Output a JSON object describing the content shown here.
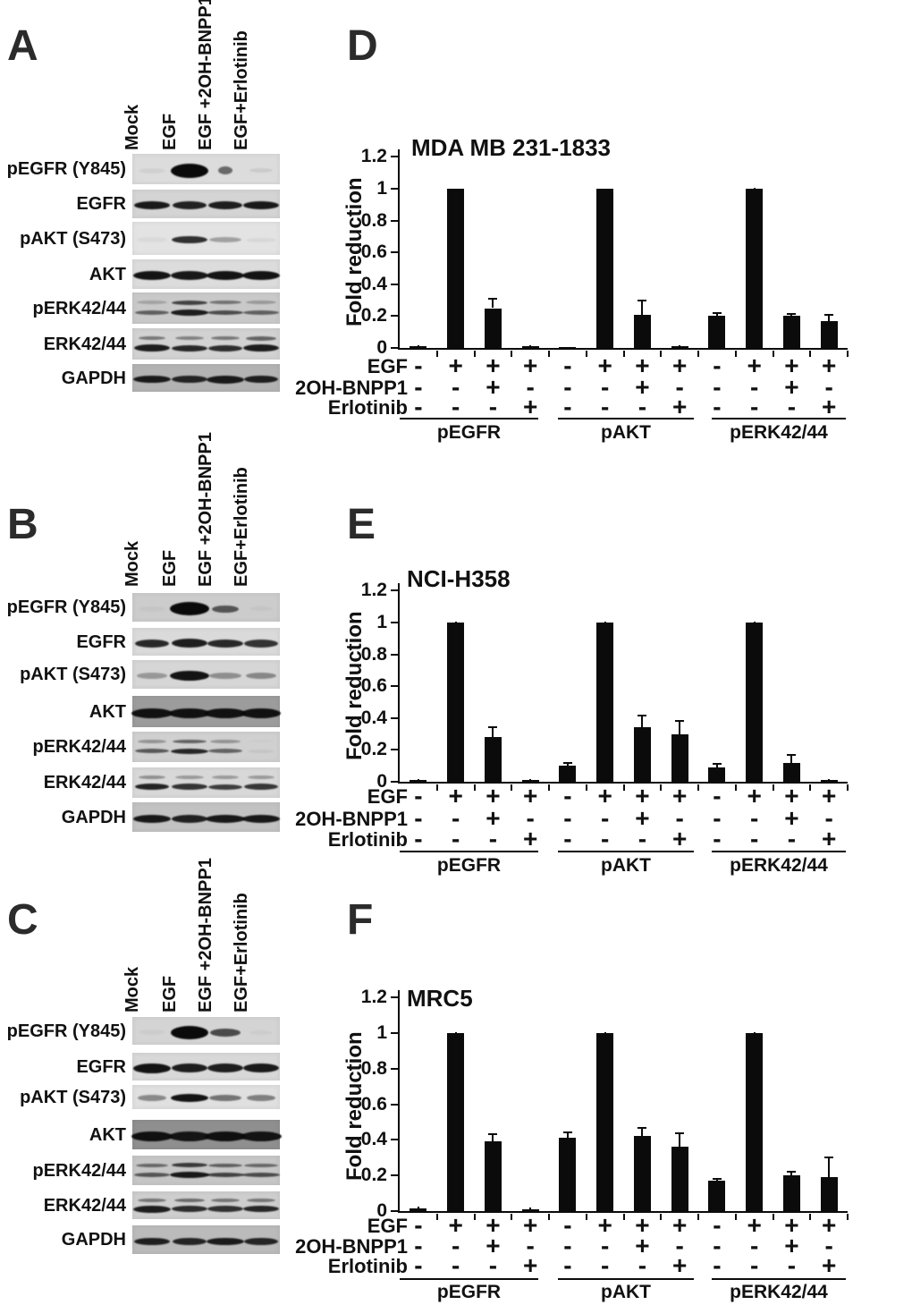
{
  "colors": {
    "ink": "#111111",
    "bar": "#0b0b0b",
    "background": "#ffffff"
  },
  "blot_lane_labels": [
    "Mock",
    "EGF",
    "EGF +2OH-BNPP1",
    "EGF+Erlotinib"
  ],
  "treatment_rows": [
    {
      "label": "EGF",
      "pattern": [
        "-",
        "+",
        "+",
        "+"
      ]
    },
    {
      "label": "2OH-BNPP1",
      "pattern": [
        "-",
        "-",
        "+",
        "-"
      ]
    },
    {
      "label": "Erlotinib",
      "pattern": [
        "-",
        "-",
        "-",
        "+"
      ]
    }
  ],
  "blot_panels": [
    {
      "letter": "A",
      "rows": [
        {
          "label": "pEGFR (Y845)",
          "bg": "#dcdcdc",
          "bands": [
            [
              0.05,
              30,
              6
            ],
            [
              1,
              42,
              16
            ],
            [
              0.55,
              16,
              9
            ],
            [
              0.08,
              26,
              5
            ]
          ]
        },
        {
          "label": "EGFR",
          "bg": "#d4d4d4",
          "bands": [
            [
              0.92,
              40,
              9
            ],
            [
              0.88,
              38,
              9
            ],
            [
              0.9,
              38,
              9
            ],
            [
              0.92,
              40,
              9
            ]
          ]
        },
        {
          "label": "pAKT (S473)",
          "bg": "#e3e3e3",
          "bands": [
            [
              0.04,
              34,
              6
            ],
            [
              0.82,
              40,
              8
            ],
            [
              0.3,
              36,
              6
            ],
            [
              0.05,
              34,
              5
            ]
          ]
        },
        {
          "label": "AKT",
          "bg": "#dcdcdc",
          "bands": [
            [
              0.95,
              42,
              10
            ],
            [
              0.93,
              42,
              10
            ],
            [
              0.95,
              42,
              10
            ],
            [
              0.95,
              42,
              10
            ]
          ]
        },
        {
          "label": "pERK42/44",
          "bg": "#c9c9c9",
          "bands": [
            [
              0.55,
              38,
              5
            ],
            [
              0.9,
              42,
              7
            ],
            [
              0.65,
              40,
              5
            ],
            [
              0.55,
              40,
              5
            ]
          ],
          "bands2": [
            [
              0.2,
              34,
              4
            ],
            [
              0.7,
              40,
              5
            ],
            [
              0.45,
              36,
              4
            ],
            [
              0.25,
              34,
              4
            ]
          ]
        },
        {
          "label": "ERK42/44",
          "bg": "#d2d2d2",
          "bands": [
            [
              0.9,
              40,
              8
            ],
            [
              0.85,
              40,
              7
            ],
            [
              0.82,
              38,
              7
            ],
            [
              0.9,
              40,
              8
            ]
          ],
          "bands2": [
            [
              0.45,
              30,
              4
            ],
            [
              0.4,
              32,
              4
            ],
            [
              0.45,
              32,
              4
            ],
            [
              0.55,
              34,
              5
            ]
          ]
        },
        {
          "label": "GAPDH",
          "bg": "#b3b3b3",
          "bands": [
            [
              0.9,
              42,
              8
            ],
            [
              0.85,
              40,
              8
            ],
            [
              0.9,
              42,
              9
            ],
            [
              0.88,
              38,
              8
            ]
          ]
        }
      ]
    },
    {
      "letter": "B",
      "rows": [
        {
          "label": "pEGFR (Y845)",
          "bg": "#cccccc",
          "bands": [
            [
              0.03,
              30,
              6
            ],
            [
              1,
              44,
              15
            ],
            [
              0.62,
              30,
              8
            ],
            [
              0.03,
              26,
              5
            ]
          ]
        },
        {
          "label": "EGFR",
          "bg": "#dadada",
          "bands": [
            [
              0.85,
              38,
              9
            ],
            [
              0.9,
              40,
              10
            ],
            [
              0.85,
              40,
              9
            ],
            [
              0.8,
              38,
              9
            ]
          ]
        },
        {
          "label": "pAKT (S473)",
          "bg": "#d6d6d6",
          "bands": [
            [
              0.3,
              34,
              7
            ],
            [
              0.95,
              44,
              11
            ],
            [
              0.35,
              36,
              7
            ],
            [
              0.38,
              34,
              7
            ]
          ]
        },
        {
          "label": "AKT",
          "bg": "#9c9c9c",
          "bands": [
            [
              0.95,
              46,
              11
            ],
            [
              0.95,
              46,
              11
            ],
            [
              0.95,
              46,
              11
            ],
            [
              0.95,
              44,
              11
            ]
          ]
        },
        {
          "label": "pERK42/44",
          "bg": "#d0d0d0",
          "bands": [
            [
              0.6,
              38,
              5
            ],
            [
              0.85,
              42,
              6
            ],
            [
              0.55,
              38,
              5
            ],
            [
              0.05,
              30,
              4
            ]
          ],
          "bands2": [
            [
              0.3,
              32,
              4
            ],
            [
              0.55,
              38,
              4
            ],
            [
              0.3,
              34,
              4
            ],
            [
              0.02,
              28,
              3
            ]
          ]
        },
        {
          "label": "ERK42/44",
          "bg": "#d8d8d8",
          "bands": [
            [
              0.88,
              38,
              7
            ],
            [
              0.8,
              40,
              7
            ],
            [
              0.75,
              38,
              6
            ],
            [
              0.78,
              38,
              7
            ]
          ],
          "bands2": [
            [
              0.35,
              30,
              4
            ],
            [
              0.3,
              32,
              4
            ],
            [
              0.3,
              30,
              4
            ],
            [
              0.3,
              30,
              4
            ]
          ]
        },
        {
          "label": "GAPDH",
          "bg": "#c2c2c2",
          "bands": [
            [
              0.92,
              42,
              9
            ],
            [
              0.88,
              40,
              9
            ],
            [
              0.92,
              44,
              9
            ],
            [
              0.92,
              42,
              9
            ]
          ]
        }
      ]
    },
    {
      "letter": "C",
      "rows": [
        {
          "label": "pEGFR (Y845)",
          "bg": "#d4d4d4",
          "bands": [
            [
              0.03,
              30,
              6
            ],
            [
              1,
              42,
              15
            ],
            [
              0.68,
              34,
              9
            ],
            [
              0.03,
              26,
              5
            ]
          ]
        },
        {
          "label": "EGFR",
          "bg": "#d8d8d8",
          "bands": [
            [
              0.95,
              42,
              11
            ],
            [
              0.9,
              40,
              10
            ],
            [
              0.9,
              40,
              10
            ],
            [
              0.92,
              40,
              10
            ]
          ]
        },
        {
          "label": "pAKT (S473)",
          "bg": "#e0e0e0",
          "bands": [
            [
              0.4,
              32,
              7
            ],
            [
              0.95,
              42,
              9
            ],
            [
              0.5,
              36,
              7
            ],
            [
              0.45,
              32,
              7
            ]
          ]
        },
        {
          "label": "AKT",
          "bg": "#8f8f8f",
          "bands": [
            [
              0.95,
              46,
              11
            ],
            [
              0.92,
              46,
              11
            ],
            [
              0.95,
              46,
              11
            ],
            [
              0.93,
              46,
              11
            ]
          ]
        },
        {
          "label": "pERK42/44",
          "bg": "#c6c6c6",
          "bands": [
            [
              0.6,
              40,
              5
            ],
            [
              0.92,
              44,
              7
            ],
            [
              0.7,
              42,
              5
            ],
            [
              0.65,
              42,
              5
            ]
          ],
          "bands2": [
            [
              0.5,
              36,
              4
            ],
            [
              0.75,
              40,
              5
            ],
            [
              0.55,
              38,
              4
            ],
            [
              0.5,
              38,
              4
            ]
          ]
        },
        {
          "label": "ERK42/44",
          "bg": "#cecece",
          "bands": [
            [
              0.9,
              42,
              8
            ],
            [
              0.82,
              40,
              7
            ],
            [
              0.8,
              40,
              7
            ],
            [
              0.85,
              40,
              7
            ]
          ],
          "bands2": [
            [
              0.45,
              32,
              4
            ],
            [
              0.5,
              34,
              4
            ],
            [
              0.45,
              32,
              4
            ],
            [
              0.45,
              32,
              4
            ]
          ]
        },
        {
          "label": "GAPDH",
          "bg": "#bbbbbb",
          "bands": [
            [
              0.88,
              40,
              8
            ],
            [
              0.85,
              38,
              8
            ],
            [
              0.9,
              42,
              8
            ],
            [
              0.85,
              38,
              8
            ]
          ]
        }
      ]
    }
  ],
  "chart_data": [
    {
      "type": "bar",
      "panel": "D",
      "title": "MDA MB 231-1833",
      "xlabel": "",
      "ylabel": "Fold reduction",
      "ylim": [
        0,
        1.2
      ],
      "yticks": [
        "0",
        "0.2",
        "0.4",
        "0.6",
        "0.8",
        "1",
        "1.2"
      ],
      "grid": false,
      "legend": "none",
      "groups": [
        "pEGFR",
        "pAKT",
        "pERK42/44"
      ],
      "conditions": [
        "Mock",
        "EGF",
        "EGF+2OH-BNPP1",
        "EGF+Erlotinib"
      ],
      "series": [
        {
          "name": "pEGFR",
          "values": [
            0.012,
            1.0,
            0.25,
            0.01
          ],
          "errors": [
            0.006,
            0,
            0.06,
            0.005
          ]
        },
        {
          "name": "pAKT",
          "values": [
            0.004,
            1.0,
            0.21,
            0.012
          ],
          "errors": [
            0,
            0,
            0.085,
            0.005
          ]
        },
        {
          "name": "pERK42/44",
          "values": [
            0.2,
            1.0,
            0.2,
            0.17
          ],
          "errors": [
            0.018,
            0.005,
            0.015,
            0.04
          ]
        }
      ]
    },
    {
      "type": "bar",
      "panel": "E",
      "title": "NCI-H358",
      "xlabel": "",
      "ylabel": "Fold reduction",
      "ylim": [
        0,
        1.2
      ],
      "yticks": [
        "0",
        "0.2",
        "0.4",
        "0.6",
        "0.8",
        "1",
        "1.2"
      ],
      "grid": false,
      "legend": "none",
      "groups": [
        "pEGFR",
        "pAKT",
        "pERK42/44"
      ],
      "conditions": [
        "Mock",
        "EGF",
        "EGF+2OH-BNPP1",
        "EGF+Erlotinib"
      ],
      "series": [
        {
          "name": "pEGFR",
          "values": [
            0.01,
            1.0,
            0.28,
            0.01
          ],
          "errors": [
            0.005,
            0.004,
            0.065,
            0.005
          ]
        },
        {
          "name": "pAKT",
          "values": [
            0.1,
            1.0,
            0.34,
            0.3
          ],
          "errors": [
            0.018,
            0.004,
            0.075,
            0.08
          ]
        },
        {
          "name": "pERK42/44",
          "values": [
            0.09,
            1.0,
            0.12,
            0.01
          ],
          "errors": [
            0.025,
            0.004,
            0.05,
            0.005
          ]
        }
      ]
    },
    {
      "type": "bar",
      "panel": "F",
      "title": "MRC5",
      "xlabel": "",
      "ylabel": "Fold reduction",
      "ylim": [
        0,
        1.2
      ],
      "yticks": [
        "0",
        "0.2",
        "0.4",
        "0.6",
        "0.8",
        "1",
        "1.2"
      ],
      "grid": false,
      "legend": "none",
      "groups": [
        "pEGFR",
        "pAKT",
        "pERK42/44"
      ],
      "conditions": [
        "Mock",
        "EGF",
        "EGF+2OH-BNPP1",
        "EGF+Erlotinib"
      ],
      "series": [
        {
          "name": "pEGFR",
          "values": [
            0.015,
            1.0,
            0.39,
            0.01
          ],
          "errors": [
            0.01,
            0.004,
            0.04,
            0.01
          ]
        },
        {
          "name": "pAKT",
          "values": [
            0.41,
            1.0,
            0.42,
            0.36
          ],
          "errors": [
            0.03,
            0.005,
            0.045,
            0.075
          ]
        },
        {
          "name": "pERK42/44",
          "values": [
            0.17,
            1.0,
            0.2,
            0.19
          ],
          "errors": [
            0.012,
            0.004,
            0.02,
            0.11
          ]
        }
      ]
    }
  ]
}
